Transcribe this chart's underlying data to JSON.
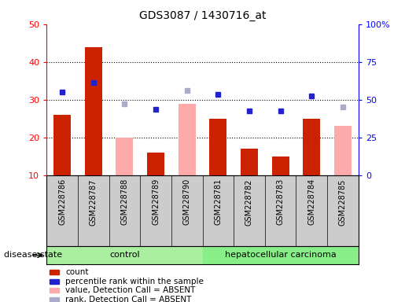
{
  "title": "GDS3087 / 1430716_at",
  "samples": [
    "GSM228786",
    "GSM228787",
    "GSM228788",
    "GSM228789",
    "GSM228790",
    "GSM228781",
    "GSM228782",
    "GSM228783",
    "GSM228784",
    "GSM228785"
  ],
  "count": [
    26,
    44,
    null,
    16,
    null,
    25,
    17,
    15,
    25,
    null
  ],
  "percentile_rank": [
    32,
    34.5,
    null,
    27.5,
    null,
    31.5,
    27,
    27,
    31,
    null
  ],
  "value_absent": [
    null,
    null,
    20,
    null,
    29,
    null,
    null,
    null,
    null,
    23
  ],
  "rank_absent": [
    null,
    null,
    29,
    null,
    32.5,
    null,
    null,
    null,
    null,
    28
  ],
  "control_label": "control",
  "cancer_label": "hepatocellular carcinoma",
  "disease_state_label": "disease state",
  "left_ylim": [
    10,
    50
  ],
  "right_ylim": [
    0,
    100
  ],
  "left_yticks": [
    10,
    20,
    30,
    40,
    50
  ],
  "right_yticks": [
    0,
    25,
    50,
    75,
    100
  ],
  "right_yticklabels": [
    "0",
    "25",
    "50",
    "75",
    "100%"
  ],
  "bar_color_red": "#cc2200",
  "bar_color_pink": "#ffaaaa",
  "dot_color_blue": "#2222cc",
  "dot_color_lightblue": "#aaaacc",
  "bg_color_plot": "#ffffff",
  "bg_color_xaxis": "#cccccc",
  "bg_color_control": "#aaeea0",
  "bg_color_cancer": "#88ee88",
  "legend_items": [
    "count",
    "percentile rank within the sample",
    "value, Detection Call = ABSENT",
    "rank, Detection Call = ABSENT"
  ],
  "legend_colors": [
    "#cc2200",
    "#2222cc",
    "#ffaaaa",
    "#aaaacc"
  ]
}
